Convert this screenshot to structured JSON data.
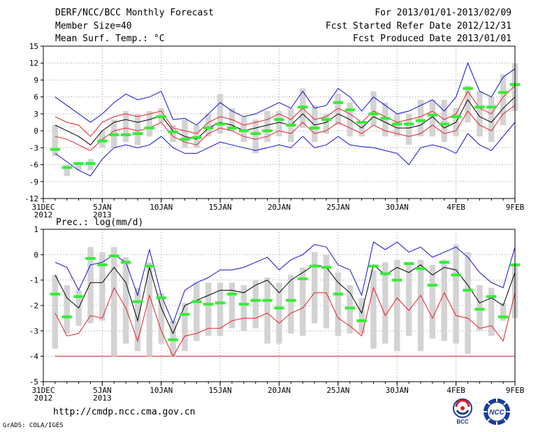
{
  "header": {
    "line1_left": "DERF/NCC/BCC Monthly Forecast",
    "line2_left": "Member Size=40",
    "line3_left": "Mean Surf. Temp.: °C",
    "line1_right": "For 2013/01/01-2013/02/09",
    "line2_right": "Fcst Started Refer Date 2012/12/31",
    "line3_right": "Fcst Produced Date 2013/01/01"
  },
  "footer": {
    "url": "http://cmdp.ncc.cma.gov.cn",
    "credit": "GrADS: COLA/IGES",
    "logo_left_label": "BCC",
    "logo_right_label": "NCC"
  },
  "colors": {
    "box": "#d3d3d3",
    "mean": "#000000",
    "inner_envelope": "#e8202a",
    "outer_envelope": "#1010d0",
    "median": "#33ee33",
    "floor": "#e8202a",
    "grid": "#999999"
  },
  "chart_data": [
    {
      "type": "line",
      "title": "Mean Surf. Temp.: °C",
      "ylabel": "Mean Surf. Temp. (°C)",
      "ylim": [
        -12,
        15
      ],
      "yticks": [
        -12,
        -9,
        -6,
        -3,
        0,
        3,
        6,
        9,
        12,
        15
      ],
      "x_day_range": [
        0,
        40
      ],
      "xticks": [
        {
          "day": 0,
          "label": "31DEC",
          "sub": "2012"
        },
        {
          "day": 5,
          "label": "5JAN",
          "sub": "2013"
        },
        {
          "day": 10,
          "label": "10JAN",
          "sub": ""
        },
        {
          "day": 15,
          "label": "15JAN",
          "sub": ""
        },
        {
          "day": 20,
          "label": "20JAN",
          "sub": ""
        },
        {
          "day": 25,
          "label": "25JAN",
          "sub": ""
        },
        {
          "day": 30,
          "label": "30JAN",
          "sub": ""
        },
        {
          "day": 35,
          "label": "4FEB",
          "sub": ""
        },
        {
          "day": 40,
          "label": "9FEB",
          "sub": ""
        }
      ],
      "days": [
        1,
        2,
        3,
        4,
        5,
        6,
        7,
        8,
        9,
        10,
        11,
        12,
        13,
        14,
        15,
        16,
        17,
        18,
        19,
        20,
        21,
        22,
        23,
        24,
        25,
        26,
        27,
        28,
        29,
        30,
        31,
        32,
        33,
        34,
        35,
        36,
        37,
        38,
        39,
        40
      ],
      "series": [
        {
          "name": "outer_upper",
          "values": [
            6,
            4.5,
            3,
            1.5,
            3,
            5,
            6.5,
            5.5,
            6,
            7,
            2,
            2.2,
            1,
            3,
            5,
            3.5,
            2.5,
            3,
            4,
            5,
            4,
            7,
            4,
            4.5,
            7.5,
            6,
            3.5,
            6,
            4.5,
            3,
            3.5,
            4.5,
            5.5,
            3.5,
            6,
            12,
            7,
            6,
            9.5,
            11
          ]
        },
        {
          "name": "inner_upper",
          "values": [
            2.5,
            1.5,
            1,
            -1,
            1.5,
            2.5,
            3,
            2.5,
            3,
            3.5,
            0.5,
            0,
            -0.5,
            1.5,
            2.5,
            2,
            1,
            1.5,
            2,
            3,
            2,
            4,
            2,
            2.5,
            4,
            3,
            1.5,
            3.5,
            2.5,
            1.5,
            2,
            2.5,
            3.5,
            2,
            3,
            7,
            4,
            3,
            6,
            8
          ]
        },
        {
          "name": "mean",
          "values": [
            1,
            0,
            -1,
            -2.5,
            0,
            1.5,
            2,
            1.5,
            2,
            2.7,
            0,
            -1,
            -1.5,
            0.5,
            1.5,
            1,
            0,
            0.5,
            1,
            1.5,
            1,
            3,
            1,
            1.5,
            3,
            2,
            0.5,
            2.5,
            1.5,
            0.5,
            0.5,
            1,
            2.5,
            0.5,
            1.5,
            5.5,
            2.5,
            1.5,
            4,
            6
          ]
        },
        {
          "name": "inner_lower",
          "values": [
            -1,
            -1.5,
            -2.5,
            -3.5,
            -1.5,
            0,
            0.5,
            0,
            0.5,
            1.5,
            -1,
            -2,
            -2.5,
            -0.5,
            0.5,
            0,
            -1,
            -1.5,
            -1,
            0,
            -0.5,
            1.5,
            -0.5,
            0,
            1.5,
            0.5,
            -0.5,
            1,
            0,
            -0.5,
            -1,
            -0.5,
            1,
            -0.5,
            0,
            3.5,
            1,
            0,
            3,
            4.5
          ]
        },
        {
          "name": "outer_lower",
          "values": [
            -4,
            -5.5,
            -7,
            -8,
            -5,
            -3,
            -2.5,
            -3,
            -2.5,
            -1,
            -3,
            -4,
            -4,
            -3,
            -2,
            -2.5,
            -3,
            -3.5,
            -3,
            -2.5,
            -3,
            -1,
            -3,
            -2.5,
            -1,
            -2.5,
            -2.8,
            -3,
            -3.5,
            -4,
            -6,
            -3,
            -2.5,
            -3,
            -4,
            -0.5,
            -2.5,
            -3.5,
            -1,
            1.5
          ]
        },
        {
          "name": "box_low",
          "values": [
            -4.5,
            -8,
            -7,
            -7,
            -3,
            -3,
            -2,
            -2.5,
            -1,
            1.5,
            -2,
            -3,
            -3,
            -1,
            -0.5,
            0,
            -2,
            -4,
            -2,
            -1,
            -2,
            0.5,
            -2,
            -0.5,
            1,
            -1,
            -1,
            1,
            -1,
            -1,
            -2.5,
            -1,
            -1,
            -2,
            -1,
            1.5,
            -1,
            -2,
            1,
            3.5
          ]
        },
        {
          "name": "box_high",
          "values": [
            1,
            -6,
            -6,
            -5,
            0,
            2,
            3.5,
            3,
            3.5,
            4,
            1,
            2,
            1,
            3,
            6.5,
            4,
            2.5,
            2,
            3.5,
            3.5,
            4,
            7.5,
            4.5,
            3,
            6.5,
            5,
            1.5,
            7,
            5,
            3,
            3,
            5.5,
            5.5,
            5.5,
            4,
            8,
            7,
            6,
            10,
            12
          ]
        },
        {
          "name": "median",
          "values": [
            -3.3,
            -6.5,
            -5.8,
            -5.8,
            -1.8,
            -0.7,
            -0.7,
            -0.5,
            0.5,
            2.5,
            -0.2,
            -1.5,
            -1.2,
            0.5,
            1.2,
            0.5,
            0,
            -0.5,
            0,
            2,
            1,
            4.2,
            0.5,
            2,
            5,
            3.7,
            1.5,
            3,
            2.2,
            1.2,
            1.2,
            1.8,
            2.8,
            1.2,
            2.5,
            7.5,
            4.2,
            4.2,
            6.8,
            8.2
          ]
        }
      ]
    },
    {
      "type": "line",
      "title": "Prec.: log(mm/d)",
      "ylabel": "Prec. log(mm/d)",
      "ylim": [
        -5,
        1
      ],
      "yticks": [
        -5,
        -4,
        -3,
        -2,
        -1,
        0,
        1
      ],
      "x_day_range": [
        0,
        40
      ],
      "xticks": [
        {
          "day": 0,
          "label": "31DEC",
          "sub": "2012"
        },
        {
          "day": 5,
          "label": "5JAN",
          "sub": "2013"
        },
        {
          "day": 10,
          "label": "10JAN",
          "sub": ""
        },
        {
          "day": 15,
          "label": "15JAN",
          "sub": ""
        },
        {
          "day": 20,
          "label": "20JAN",
          "sub": ""
        },
        {
          "day": 25,
          "label": "25JAN",
          "sub": ""
        },
        {
          "day": 30,
          "label": "30JAN",
          "sub": ""
        },
        {
          "day": 35,
          "label": "4FEB",
          "sub": ""
        },
        {
          "day": 40,
          "label": "9FEB",
          "sub": ""
        }
      ],
      "floor_value": -4,
      "days": [
        1,
        2,
        3,
        4,
        5,
        6,
        7,
        8,
        9,
        10,
        11,
        12,
        13,
        14,
        15,
        16,
        17,
        18,
        19,
        20,
        21,
        22,
        23,
        24,
        25,
        26,
        27,
        28,
        29,
        30,
        31,
        32,
        33,
        34,
        35,
        36,
        37,
        38,
        39,
        40
      ],
      "series": [
        {
          "name": "outer_upper",
          "values": [
            -0.3,
            -0.5,
            -1.4,
            -0.4,
            -0.3,
            0,
            -0.3,
            -1.6,
            0.2,
            -1.6,
            -2.7,
            -1.4,
            -1.1,
            -0.9,
            -0.6,
            -0.6,
            -0.5,
            -0.3,
            -0.1,
            -0.6,
            -0.2,
            0,
            0.4,
            0.3,
            -0.4,
            -0.6,
            -1.6,
            0.5,
            0.2,
            0.5,
            0.1,
            0.3,
            -0.1,
            0.1,
            0.3,
            -0.1,
            -0.7,
            -1.1,
            -1.3,
            0.3
          ]
        },
        {
          "name": "mean",
          "values": [
            -0.8,
            -1.7,
            -2.1,
            -1.1,
            -1.1,
            -0.5,
            -1.1,
            -2.6,
            -0.5,
            -2.1,
            -3.1,
            -2,
            -1.8,
            -1.6,
            -1.4,
            -1.4,
            -1.5,
            -1.2,
            -1,
            -1.5,
            -1,
            -0.7,
            -0.4,
            -0.5,
            -1.1,
            -1.5,
            -2.3,
            -0.4,
            -0.8,
            -0.5,
            -0.7,
            -0.4,
            -0.8,
            -0.5,
            -0.6,
            -1.2,
            -1.9,
            -1.7,
            -2,
            -0.7
          ]
        },
        {
          "name": "inner_lower",
          "values": [
            -2.3,
            -3.2,
            -3.1,
            -2.4,
            -2.5,
            -1.3,
            -2.1,
            -3.4,
            -1.6,
            -3,
            -4,
            -3.2,
            -3.1,
            -2.9,
            -2.9,
            -2.6,
            -2.5,
            -2.5,
            -2.3,
            -2.7,
            -2.3,
            -2.1,
            -1.5,
            -1.5,
            -2.5,
            -2.8,
            -3.2,
            -1.3,
            -2.4,
            -1.7,
            -2.2,
            -1.6,
            -2.5,
            -1.5,
            -2.4,
            -2.5,
            -2.9,
            -2.8,
            -3.4,
            -1.5
          ]
        },
        {
          "name": "box_low",
          "values": [
            -3.7,
            -3.1,
            -2.8,
            -2.7,
            -2.6,
            -4,
            -3.5,
            -3.8,
            -4,
            -3.5,
            -4,
            -3.8,
            -3.4,
            -3.2,
            -3.2,
            -2.9,
            -3,
            -2.9,
            -3.5,
            -3.5,
            -3.1,
            -3.2,
            -2.7,
            -2.9,
            -3.2,
            -3.1,
            -3.1,
            -3.7,
            -3.5,
            -3.8,
            -3.2,
            -3.8,
            -3.3,
            -3.4,
            -3.5,
            -3.9,
            -3,
            -3.2,
            -2.6,
            -2.5
          ]
        },
        {
          "name": "box_high",
          "values": [
            -0.8,
            -1.2,
            -1.4,
            0.3,
            0.1,
            0.3,
            -0.1,
            -1.3,
            -0.3,
            -1.5,
            -2.6,
            -1.9,
            -1.1,
            -1.1,
            -1.1,
            -1.1,
            -1.2,
            -1,
            -0.9,
            -1.1,
            -0.8,
            -0.5,
            0.1,
            0,
            -0.7,
            -1.2,
            -1.7,
            -0.6,
            -0.3,
            -0.2,
            -0.3,
            -0.2,
            -0.4,
            -0.2,
            0.4,
            0.1,
            -1.2,
            -1.3,
            -1.9,
            -0.4
          ]
        },
        {
          "name": "median",
          "values": [
            -1.55,
            -2.45,
            -1.65,
            -0.15,
            -0.4,
            -0.05,
            -0.3,
            -1.85,
            -0.45,
            -1.7,
            -3.35,
            -2.35,
            -1.85,
            -1.95,
            -1.9,
            -1.55,
            -1.95,
            -1.8,
            -1.8,
            -2.1,
            -1.8,
            -0.95,
            -0.45,
            -0.5,
            -1.55,
            -2.1,
            -2.6,
            -0.45,
            -0.75,
            -1,
            -0.35,
            -0.55,
            -1.2,
            -0.3,
            -0.8,
            -1.4,
            -2.15,
            -1.65,
            -2.45,
            -0.4
          ]
        }
      ]
    }
  ]
}
